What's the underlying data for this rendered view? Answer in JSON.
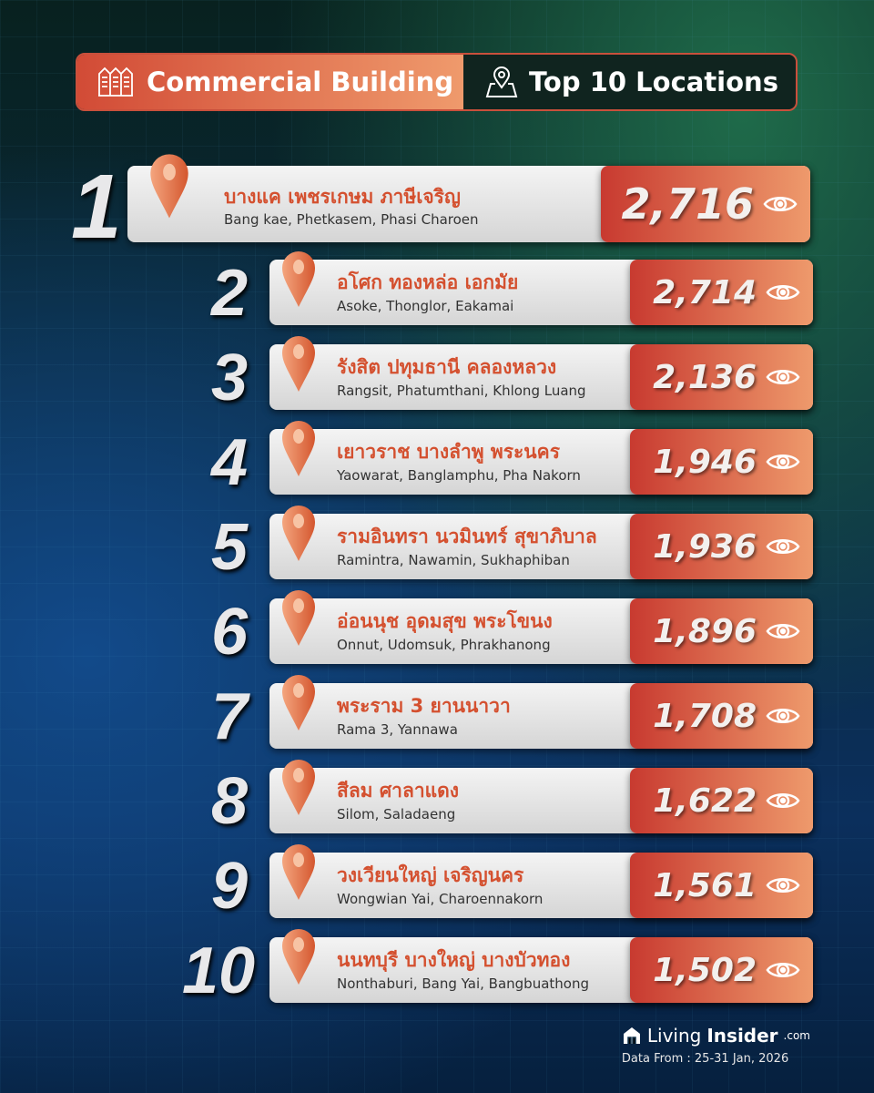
{
  "header": {
    "category": "Commercial Building",
    "title": "Top 10 Locations",
    "category_icon": "buildings-icon",
    "title_icon": "map-pin-icon"
  },
  "colors": {
    "accent": "#d4502f",
    "value_box_start": "#c83a30",
    "value_box_end": "#ee9a6c"
  },
  "locations": [
    {
      "rank": "1",
      "th": "บางแค เพชรเกษม ภาษีเจริญ",
      "en": "Bang kae, Phetkasem, Phasi Charoen",
      "views": "2,716"
    },
    {
      "rank": "2",
      "th": "อโศก ทองหล่อ เอกมัย",
      "en": "Asoke, Thonglor, Eakamai",
      "views": "2,714"
    },
    {
      "rank": "3",
      "th": "รังสิต ปทุมธานี คลองหลวง",
      "en": "Rangsit, Phatumthani, Khlong Luang",
      "views": "2,136"
    },
    {
      "rank": "4",
      "th": "เยาวราช บางลำพู พระนคร",
      "en": "Yaowarat, Banglamphu, Pha Nakorn",
      "views": "1,946"
    },
    {
      "rank": "5",
      "th": "รามอินทรา นวมินทร์ สุขาภิบาล",
      "en": "Ramintra, Nawamin, Sukhaphiban",
      "views": "1,936"
    },
    {
      "rank": "6",
      "th": "อ่อนนุช อุดมสุข พระโขนง",
      "en": "Onnut, Udomsuk, Phrakhanong",
      "views": "1,896"
    },
    {
      "rank": "7",
      "th": "พระราม 3 ยานนาวา",
      "en": "Rama 3, Yannawa",
      "views": "1,708"
    },
    {
      "rank": "8",
      "th": "สีลม ศาลาแดง",
      "en": "Silom, Saladaeng",
      "views": "1,622"
    },
    {
      "rank": "9",
      "th": "วงเวียนใหญ่ เจริญนคร",
      "en": "Wongwian Yai, Charoennakorn",
      "views": "1,561"
    },
    {
      "rank": "10",
      "th": "นนทบุรี บางใหญ่ บางบัวทอง",
      "en": "Nonthaburi, Bang Yai, Bangbuathong",
      "views": "1,502"
    }
  ],
  "footer": {
    "brand_living": "Living",
    "brand_insider": "Insider",
    "brand_suffix": ".com",
    "date": "Data From : 25-31 Jan, 2026"
  }
}
